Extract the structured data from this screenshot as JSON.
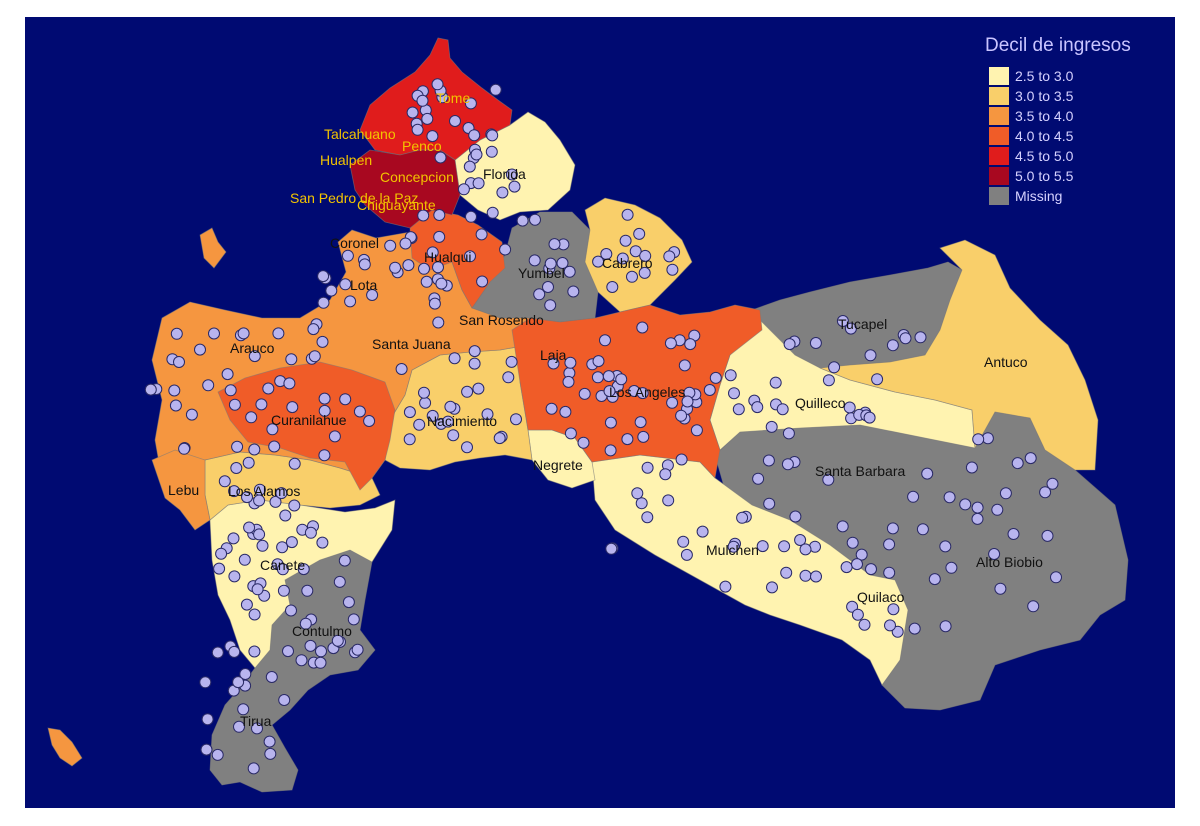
{
  "legend": {
    "title": "Decil de ingresos",
    "items": [
      {
        "label": "2.5 to 3.0",
        "color": "#fff3b0"
      },
      {
        "label": "3.0 to 3.5",
        "color": "#f9cf6a"
      },
      {
        "label": "3.5 to 4.0",
        "color": "#f59640"
      },
      {
        "label": "4.0 to 4.5",
        "color": "#f05c28"
      },
      {
        "label": "4.5 to 5.0",
        "color": "#e01c1c"
      },
      {
        "label": "5.0 to 5.5",
        "color": "#a80820"
      },
      {
        "label": "Missing",
        "color": "#808080"
      }
    ]
  },
  "colors": {
    "background": "#000a72",
    "point_fill": "#b8b4ee",
    "label_light": "#f2c400"
  },
  "communes": {
    "tome": "Tome",
    "talcahuano": "Talcahuano",
    "penco": "Penco",
    "hualpen": "Hualpen",
    "concepcion": "Concepcion",
    "san_pedro": "San Pedro de la Paz",
    "chiguayante": "Chiguayante",
    "florida": "Florida",
    "coronel": "Coronel",
    "hualqui": "Hualqui",
    "yumbel": "Yumbel",
    "cabrero": "Cabrero",
    "lota": "Lota",
    "san_rosendo": "San Rosendo",
    "tucapel": "Tucapel",
    "arauco": "Arauco",
    "santa_juana": "Santa Juana",
    "laja": "Laja",
    "antuco": "Antuco",
    "los_angeles": "Los Angeles",
    "quilleco": "Quilleco",
    "curanilahue": "Curanilahue",
    "nacimiento": "Nacimiento",
    "santa_barbara": "Santa Barbara",
    "negrete": "Negrete",
    "lebu": "Lebu",
    "los_alamos": "Los Alamos",
    "mulchen": "Mulchen",
    "alto_biobio": "Alto Biobio",
    "canete": "Canete",
    "quilaco": "Quilaco",
    "contulmo": "Contulmo",
    "tirua": "Tirua"
  }
}
